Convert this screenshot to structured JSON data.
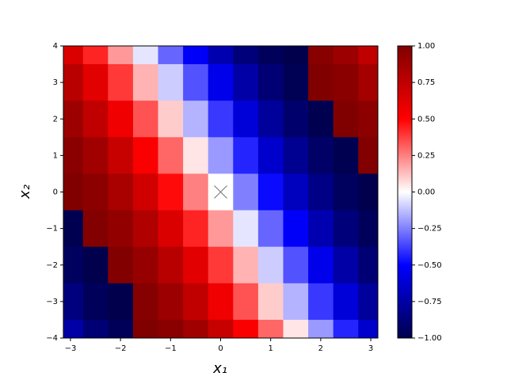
{
  "chart_data": {
    "type": "heatmap",
    "xlabel": "x₁",
    "ylabel": "x₂",
    "x": [
      -3,
      -2.5,
      -2,
      -1.5,
      -1,
      -0.5,
      0,
      0.5,
      1,
      1.5,
      2,
      2.5,
      3
    ],
    "y": [
      4,
      3,
      2,
      1,
      0,
      -1,
      -2,
      -3,
      -4
    ],
    "z": [
      [
        0.64,
        0.43,
        0.2,
        -0.05,
        -0.3,
        -0.52,
        -0.72,
        -0.87,
        -0.96,
        -1.0,
        0.97,
        0.89,
        0.75
      ],
      [
        0.78,
        0.61,
        0.39,
        0.15,
        -0.1,
        -0.34,
        -0.56,
        -0.75,
        -0.89,
        -0.98,
        1.0,
        0.96,
        0.86
      ],
      [
        0.89,
        0.75,
        0.56,
        0.34,
        0.1,
        -0.15,
        -0.39,
        -0.61,
        -0.78,
        -0.91,
        -0.99,
        1.0,
        0.95
      ],
      [
        0.96,
        0.87,
        0.72,
        0.52,
        0.3,
        0.05,
        -0.2,
        -0.43,
        -0.64,
        -0.81,
        -0.93,
        -0.99,
        0.99
      ],
      [
        1.0,
        0.95,
        0.84,
        0.68,
        0.48,
        0.25,
        0,
        -0.25,
        -0.48,
        -0.68,
        -0.84,
        -0.95,
        -1.0
      ],
      [
        -0.99,
        0.99,
        0.93,
        0.81,
        0.64,
        0.43,
        0.2,
        -0.05,
        -0.3,
        -0.52,
        -0.72,
        -0.87,
        -0.96
      ],
      [
        -0.95,
        -1.0,
        0.99,
        0.91,
        0.78,
        0.61,
        0.39,
        0.15,
        -0.1,
        -0.34,
        -0.56,
        -0.75,
        -0.89
      ],
      [
        -0.86,
        -0.96,
        -1.0,
        0.98,
        0.89,
        0.75,
        0.56,
        0.34,
        0.1,
        -0.15,
        -0.39,
        -0.61,
        -0.78
      ],
      [
        -0.75,
        -0.89,
        -0.97,
        1.0,
        0.96,
        0.87,
        0.72,
        0.52,
        0.3,
        0.05,
        -0.2,
        -0.43,
        -0.64
      ]
    ],
    "colormap": "seismic",
    "clim": [
      -1,
      1
    ],
    "xlim": [
      -3.1416,
      3.1416
    ],
    "ylim": [
      -4,
      4
    ],
    "xticks": [
      {
        "value": -3,
        "label": "−3"
      },
      {
        "value": -2,
        "label": "−2"
      },
      {
        "value": -1,
        "label": "−1"
      },
      0,
      1,
      2,
      3
    ],
    "yticks": [
      {
        "value": -4,
        "label": "−4"
      },
      {
        "value": -3,
        "label": "−3"
      },
      {
        "value": -2,
        "label": "−2"
      },
      {
        "value": -1,
        "label": "−1"
      },
      0,
      1,
      2,
      3,
      4
    ],
    "cticks": [
      {
        "value": -1,
        "label": "−1.00"
      },
      {
        "value": -0.75,
        "label": "−0.75"
      },
      {
        "value": -0.5,
        "label": "−0.50"
      },
      {
        "value": -0.25,
        "label": "−0.25"
      },
      {
        "value": 0,
        "label": "0.00"
      },
      {
        "value": 0.25,
        "label": "0.25"
      },
      {
        "value": 0.5,
        "label": "0.50"
      },
      {
        "value": 0.75,
        "label": "0.75"
      },
      {
        "value": 1,
        "label": "1.00"
      }
    ],
    "marker": {
      "x": 0,
      "y": 0,
      "color": "#808080"
    }
  }
}
